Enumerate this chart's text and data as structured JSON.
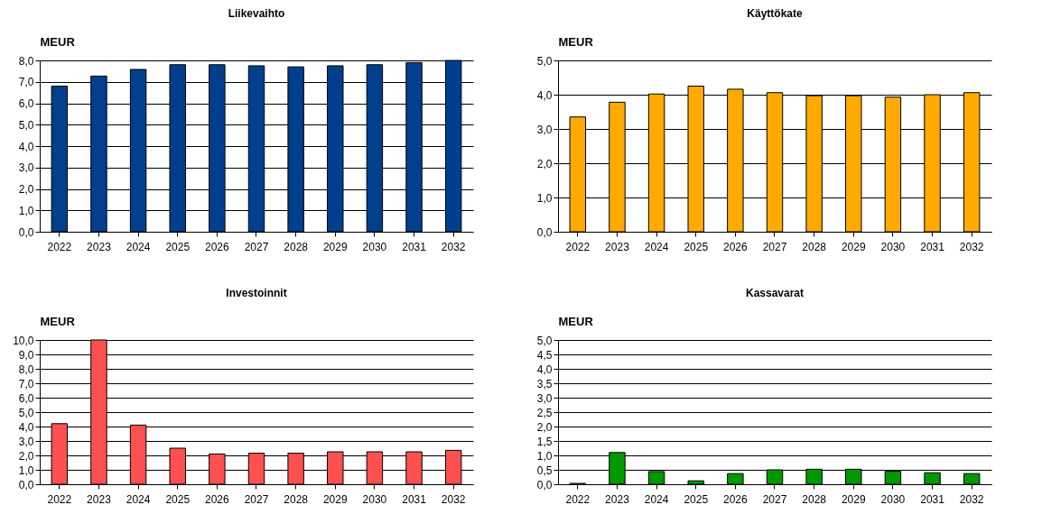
{
  "chart_data": [
    {
      "type": "bar",
      "title": "Liikevaihto",
      "ylabel": "MEUR",
      "categories": [
        "2022",
        "2023",
        "2024",
        "2025",
        "2026",
        "2027",
        "2028",
        "2029",
        "2030",
        "2031",
        "2032"
      ],
      "values": [
        6.8,
        7.27,
        7.58,
        7.8,
        7.8,
        7.75,
        7.7,
        7.75,
        7.8,
        7.9,
        8.0
      ],
      "color": "#003f8c",
      "ylim": [
        0,
        8
      ],
      "yticks": [
        {
          "value": 0,
          "label": "0,0"
        },
        {
          "value": 1,
          "label": "1,0"
        },
        {
          "value": 2,
          "label": "2,0"
        },
        {
          "value": 3,
          "label": "3,0"
        },
        {
          "value": 4,
          "label": "4,0"
        },
        {
          "value": 5,
          "label": "5,0"
        },
        {
          "value": 6,
          "label": "6,0"
        },
        {
          "value": 7,
          "label": "7,0"
        },
        {
          "value": 8,
          "label": "8,0"
        }
      ],
      "grid": "y"
    },
    {
      "type": "bar",
      "title": "Käyttökate",
      "ylabel": "MEUR",
      "categories": [
        "2022",
        "2023",
        "2024",
        "2025",
        "2026",
        "2027",
        "2028",
        "2029",
        "2030",
        "2031",
        "2032"
      ],
      "values": [
        3.35,
        3.78,
        4.02,
        4.25,
        4.16,
        4.06,
        3.97,
        3.97,
        3.93,
        4.0,
        4.06
      ],
      "color": "#ffaa00",
      "ylim": [
        0,
        5
      ],
      "yticks": [
        {
          "value": 0,
          "label": "0,0"
        },
        {
          "value": 1,
          "label": "1,0"
        },
        {
          "value": 2,
          "label": "2,0"
        },
        {
          "value": 3,
          "label": "3,0"
        },
        {
          "value": 4,
          "label": "4,0"
        },
        {
          "value": 5,
          "label": "5,0"
        }
      ],
      "grid": "y"
    },
    {
      "type": "bar",
      "title": "Investoinnit",
      "ylabel": "MEUR",
      "categories": [
        "2022",
        "2023",
        "2024",
        "2025",
        "2026",
        "2027",
        "2028",
        "2029",
        "2030",
        "2031",
        "2032"
      ],
      "values": [
        4.2,
        10.0,
        4.1,
        2.5,
        2.1,
        2.15,
        2.15,
        2.25,
        2.25,
        2.25,
        2.35
      ],
      "color": "#ff5050",
      "ylim": [
        0,
        10
      ],
      "yticks": [
        {
          "value": 0,
          "label": "0,0"
        },
        {
          "value": 1,
          "label": "1,0"
        },
        {
          "value": 2,
          "label": "2,0"
        },
        {
          "value": 3,
          "label": "3,0"
        },
        {
          "value": 4,
          "label": "4,0"
        },
        {
          "value": 5,
          "label": "5,0"
        },
        {
          "value": 6,
          "label": "6,0"
        },
        {
          "value": 7,
          "label": "7,0"
        },
        {
          "value": 8,
          "label": "8,0"
        },
        {
          "value": 9,
          "label": "9,0"
        },
        {
          "value": 10,
          "label": "10,0"
        }
      ],
      "grid": "y"
    },
    {
      "type": "bar",
      "title": "Kassavarat",
      "ylabel": "MEUR",
      "categories": [
        "2022",
        "2023",
        "2024",
        "2025",
        "2026",
        "2027",
        "2028",
        "2029",
        "2030",
        "2031",
        "2032"
      ],
      "values": [
        0.03,
        1.1,
        0.44,
        0.12,
        0.37,
        0.5,
        0.52,
        0.52,
        0.45,
        0.4,
        0.37
      ],
      "color": "#009900",
      "ylim": [
        0,
        5
      ],
      "yticks": [
        {
          "value": 0,
          "label": "0,0"
        },
        {
          "value": 0.5,
          "label": "0,5"
        },
        {
          "value": 1,
          "label": "1,0"
        },
        {
          "value": 1.5,
          "label": "1,5"
        },
        {
          "value": 2,
          "label": "2,0"
        },
        {
          "value": 2.5,
          "label": "2,5"
        },
        {
          "value": 3,
          "label": "3,0"
        },
        {
          "value": 3.5,
          "label": "3,5"
        },
        {
          "value": 4,
          "label": "4,0"
        },
        {
          "value": 4.5,
          "label": "4,5"
        },
        {
          "value": 5,
          "label": "5,0"
        }
      ],
      "grid": "y"
    }
  ]
}
